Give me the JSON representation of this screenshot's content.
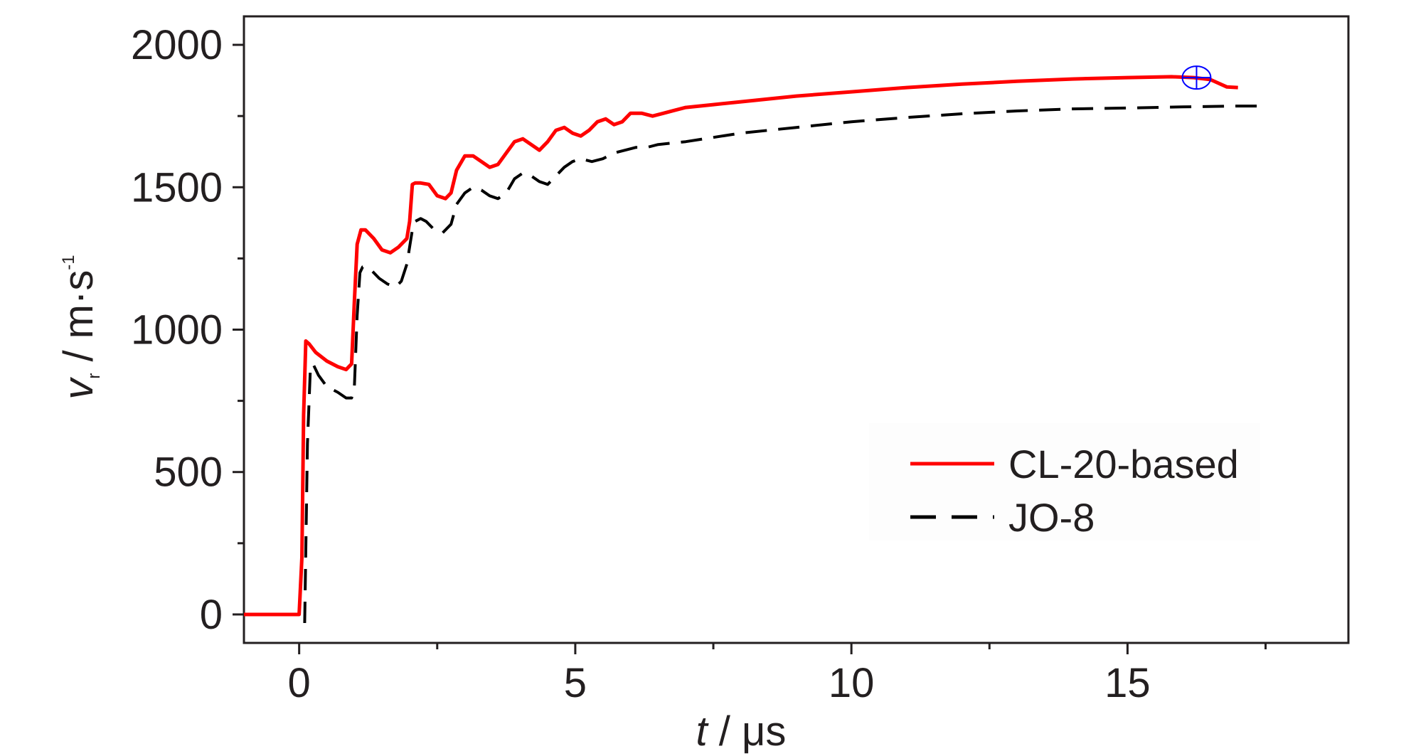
{
  "chart_data": {
    "type": "line",
    "xlabel_var": "t",
    "xlabel_unit": " / μs",
    "ylabel_var": "v",
    "ylabel_sub": "r",
    "ylabel_unit": " / m·s",
    "ylabel_sup": "-1",
    "xlim": [
      -1,
      19
    ],
    "ylim": [
      -100,
      2100
    ],
    "x_ticks": [
      0,
      5,
      10,
      15
    ],
    "x_tick_labels": [
      "0",
      "5",
      "10",
      "15"
    ],
    "y_ticks": [
      0,
      500,
      1000,
      1500,
      2000
    ],
    "y_tick_labels": [
      "0",
      "500",
      "1000",
      "1500",
      "2000"
    ],
    "grid": false,
    "legend_position": "bottom-right",
    "series": [
      {
        "name": "CL-20-based",
        "color": "#ff0000",
        "style": "solid",
        "x": [
          -1,
          0,
          0.05,
          0.08,
          0.12,
          0.18,
          0.3,
          0.5,
          0.7,
          0.85,
          0.95,
          1.0,
          1.05,
          1.12,
          1.2,
          1.35,
          1.5,
          1.65,
          1.8,
          1.95,
          2.0,
          2.05,
          2.1,
          2.2,
          2.35,
          2.5,
          2.65,
          2.75,
          2.85,
          3.0,
          3.15,
          3.3,
          3.45,
          3.6,
          3.75,
          3.9,
          4.05,
          4.2,
          4.35,
          4.5,
          4.65,
          4.8,
          4.95,
          5.1,
          5.25,
          5.4,
          5.55,
          5.7,
          5.85,
          6.0,
          6.2,
          6.4,
          6.6,
          6.8,
          7.0,
          7.5,
          8.0,
          9.0,
          10.0,
          11.0,
          12.0,
          13.0,
          14.0,
          15.0,
          15.8,
          16.2,
          16.5,
          16.8,
          17.0
        ],
        "y": [
          0,
          0,
          200,
          700,
          960,
          950,
          920,
          890,
          870,
          860,
          880,
          1100,
          1300,
          1350,
          1350,
          1320,
          1280,
          1270,
          1290,
          1320,
          1380,
          1510,
          1515,
          1515,
          1510,
          1470,
          1460,
          1480,
          1560,
          1610,
          1610,
          1590,
          1570,
          1580,
          1620,
          1660,
          1670,
          1650,
          1630,
          1660,
          1700,
          1710,
          1690,
          1680,
          1700,
          1730,
          1740,
          1720,
          1730,
          1760,
          1760,
          1750,
          1760,
          1770,
          1780,
          1790,
          1800,
          1820,
          1835,
          1850,
          1862,
          1872,
          1880,
          1885,
          1888,
          1885,
          1878,
          1852,
          1850
        ]
      },
      {
        "name": "JO-8",
        "color": "#000000",
        "style": "dashed",
        "x": [
          0.1,
          0.15,
          0.2,
          0.25,
          0.35,
          0.5,
          0.7,
          0.85,
          0.95,
          1.0,
          1.05,
          1.1,
          1.15,
          1.22,
          1.3,
          1.45,
          1.6,
          1.75,
          1.85,
          1.95,
          2.05,
          2.1,
          2.2,
          2.3,
          2.45,
          2.6,
          2.75,
          2.85,
          3.0,
          3.15,
          3.3,
          3.45,
          3.6,
          3.75,
          3.9,
          4.05,
          4.2,
          4.35,
          4.5,
          4.65,
          4.8,
          4.95,
          5.1,
          5.3,
          5.5,
          5.7,
          5.9,
          6.1,
          6.3,
          6.5,
          7.0,
          7.5,
          8.0,
          9.0,
          10.0,
          11.0,
          12.0,
          13.0,
          14.0,
          15.0,
          16.0,
          17.0,
          17.5
        ],
        "y": [
          -30,
          600,
          850,
          880,
          840,
          800,
          780,
          760,
          760,
          800,
          1050,
          1200,
          1220,
          1220,
          1210,
          1180,
          1160,
          1150,
          1170,
          1230,
          1350,
          1380,
          1390,
          1380,
          1350,
          1340,
          1370,
          1440,
          1480,
          1500,
          1490,
          1470,
          1460,
          1480,
          1530,
          1550,
          1540,
          1520,
          1510,
          1540,
          1570,
          1590,
          1600,
          1590,
          1600,
          1620,
          1630,
          1640,
          1640,
          1650,
          1660,
          1675,
          1690,
          1710,
          1730,
          1745,
          1758,
          1768,
          1775,
          1778,
          1782,
          1785,
          1785
        ]
      }
    ]
  },
  "marker": {
    "x": 16.25,
    "y": 1885,
    "color": "#0000ff"
  }
}
